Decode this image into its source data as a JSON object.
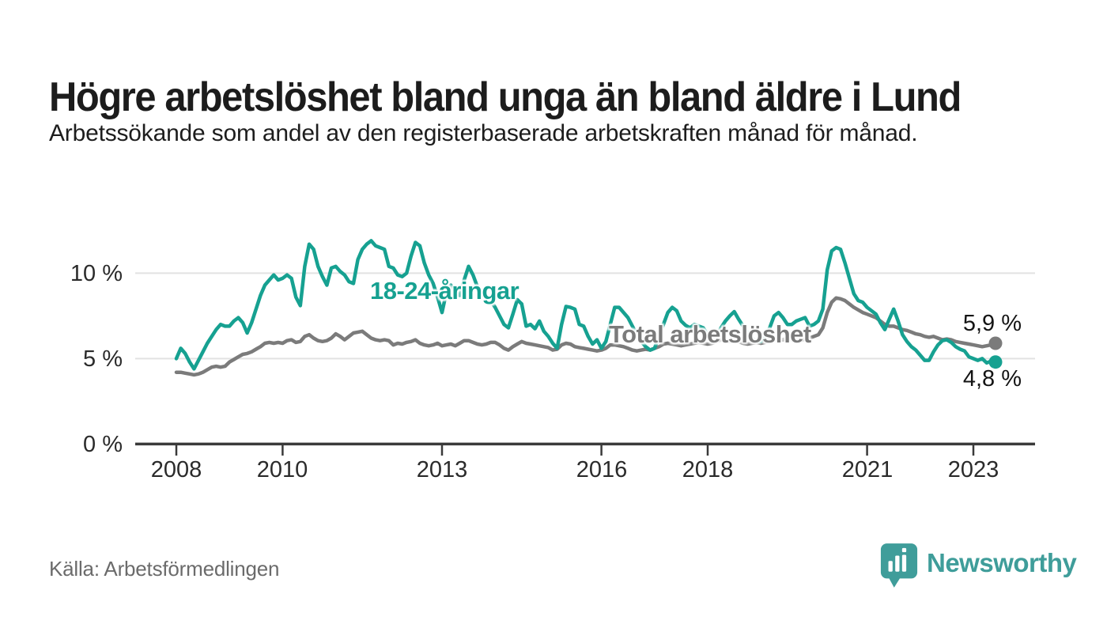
{
  "header": {
    "title": "Högre arbetslöshet bland unga än bland äldre i Lund",
    "subtitle": "Arbetssökande som andel av den registerbaserade arbetskraften månad för månad."
  },
  "chart_data": {
    "type": "line",
    "unit": "%",
    "frequency": "monthly",
    "start": "2008-01",
    "end": "2023-06",
    "grid": true,
    "ylim": [
      0,
      12.3
    ],
    "yticks": [
      {
        "value": 10,
        "label": "10 %"
      },
      {
        "value": 5,
        "label": "5 %"
      },
      {
        "value": 0,
        "label": "0 %"
      }
    ],
    "xticks": [
      {
        "year": 2008,
        "label": "2008"
      },
      {
        "year": 2010,
        "label": "2010"
      },
      {
        "year": 2013,
        "label": "2013"
      },
      {
        "year": 2016,
        "label": "2016"
      },
      {
        "year": 2018,
        "label": "2018"
      },
      {
        "year": 2021,
        "label": "2021"
      },
      {
        "year": 2023,
        "label": "2023"
      }
    ],
    "series": [
      {
        "name": "18-24-åringar",
        "color": "#16a191",
        "end_value": 4.8,
        "end_label": "4,8 %",
        "values": [
          5.0,
          5.6,
          5.3,
          4.8,
          4.4,
          4.9,
          5.4,
          5.9,
          6.3,
          6.7,
          7.0,
          6.9,
          6.9,
          7.2,
          7.4,
          7.1,
          6.5,
          7.1,
          7.9,
          8.7,
          9.3,
          9.6,
          9.9,
          9.6,
          9.7,
          9.9,
          9.7,
          8.6,
          8.1,
          10.4,
          11.7,
          11.4,
          10.4,
          9.8,
          9.3,
          10.3,
          10.4,
          10.1,
          9.9,
          9.5,
          9.4,
          10.8,
          11.4,
          11.7,
          11.9,
          11.6,
          11.5,
          11.4,
          10.4,
          10.3,
          9.9,
          9.8,
          10.0,
          11.0,
          11.8,
          11.6,
          10.6,
          9.9,
          9.4,
          8.6,
          7.7,
          8.9,
          9.3,
          8.9,
          8.7,
          9.6,
          10.4,
          9.9,
          9.2,
          8.8,
          8.6,
          8.4,
          8.0,
          7.5,
          7.0,
          6.8,
          7.6,
          8.45,
          8.2,
          6.9,
          7.0,
          6.75,
          7.2,
          6.6,
          6.3,
          5.9,
          5.6,
          7.0,
          8.05,
          8.0,
          7.9,
          7.0,
          6.9,
          6.3,
          5.85,
          6.1,
          5.6,
          6.0,
          7.0,
          8.0,
          8.0,
          7.7,
          7.4,
          6.9,
          6.4,
          6.0,
          5.7,
          5.5,
          5.6,
          6.3,
          7.0,
          7.7,
          8.0,
          7.8,
          7.2,
          6.95,
          6.8,
          7.0,
          6.9,
          6.8,
          6.4,
          6.0,
          6.3,
          6.8,
          7.2,
          7.5,
          7.75,
          7.3,
          6.9,
          6.5,
          6.2,
          6.0,
          6.0,
          6.3,
          6.8,
          7.5,
          7.7,
          7.4,
          7.0,
          7.0,
          7.2,
          7.3,
          7.4,
          6.9,
          7.0,
          7.2,
          7.9,
          10.2,
          11.3,
          11.5,
          11.4,
          10.6,
          9.7,
          8.8,
          8.4,
          8.3,
          8.0,
          7.8,
          7.6,
          7.1,
          6.7,
          7.3,
          7.9,
          7.2,
          6.4,
          6.0,
          5.7,
          5.5,
          5.2,
          4.9,
          4.9,
          5.4,
          5.8,
          6.05,
          6.1,
          5.95,
          5.7,
          5.55,
          5.45,
          5.1,
          5.0,
          4.9,
          5.0,
          4.75,
          4.85,
          4.8
        ]
      },
      {
        "name": "Total arbetslöshet",
        "color": "#7b7b7b",
        "end_value": 5.9,
        "end_label": "5,9 %",
        "values": [
          4.2,
          4.2,
          4.15,
          4.1,
          4.05,
          4.1,
          4.2,
          4.35,
          4.5,
          4.55,
          4.5,
          4.55,
          4.8,
          4.95,
          5.1,
          5.25,
          5.3,
          5.4,
          5.55,
          5.7,
          5.9,
          5.95,
          5.9,
          5.95,
          5.9,
          6.05,
          6.1,
          5.95,
          6.0,
          6.3,
          6.4,
          6.2,
          6.05,
          6.0,
          6.05,
          6.2,
          6.45,
          6.3,
          6.1,
          6.3,
          6.5,
          6.55,
          6.6,
          6.4,
          6.2,
          6.1,
          6.05,
          6.1,
          6.05,
          5.8,
          5.9,
          5.85,
          5.95,
          6.0,
          6.1,
          5.9,
          5.8,
          5.75,
          5.8,
          5.9,
          5.75,
          5.8,
          5.85,
          5.75,
          5.9,
          6.05,
          6.05,
          5.95,
          5.85,
          5.8,
          5.85,
          5.95,
          5.95,
          5.8,
          5.6,
          5.5,
          5.7,
          5.85,
          6.0,
          5.9,
          5.85,
          5.8,
          5.75,
          5.7,
          5.65,
          5.5,
          5.55,
          5.8,
          5.9,
          5.85,
          5.7,
          5.65,
          5.6,
          5.55,
          5.5,
          5.45,
          5.5,
          5.6,
          5.8,
          5.8,
          5.75,
          5.7,
          5.6,
          5.5,
          5.45,
          5.5,
          5.55,
          5.5,
          5.6,
          5.7,
          5.85,
          5.9,
          5.85,
          5.8,
          5.75,
          5.8,
          5.85,
          5.9,
          5.95,
          5.9,
          5.85,
          5.9,
          6.0,
          6.1,
          6.05,
          6.0,
          6.1,
          6.0,
          5.9,
          5.85,
          5.9,
          5.95,
          5.9,
          5.95,
          6.0,
          6.1,
          6.15,
          6.1,
          6.2,
          6.1,
          6.0,
          6.05,
          6.15,
          6.2,
          6.3,
          6.4,
          6.8,
          7.7,
          8.3,
          8.55,
          8.5,
          8.4,
          8.2,
          8.0,
          7.85,
          7.7,
          7.6,
          7.5,
          7.4,
          7.2,
          7.0,
          6.9,
          6.9,
          6.8,
          6.7,
          6.65,
          6.55,
          6.45,
          6.4,
          6.3,
          6.25,
          6.3,
          6.2,
          6.1,
          6.15,
          6.1,
          6.0,
          5.95,
          5.9,
          5.85,
          5.8,
          5.75,
          5.7,
          5.75,
          5.8,
          5.9
        ]
      }
    ],
    "colors": {
      "accent_teal": "#16a191",
      "series_gray": "#7b7b7b",
      "axis": "#3a3a3a",
      "grid": "#e2e2e2",
      "brand_teal": "#3f9d9a"
    }
  },
  "footer": {
    "source": "Källa: Arbetsförmedlingen",
    "brand": "Newsworthy"
  }
}
